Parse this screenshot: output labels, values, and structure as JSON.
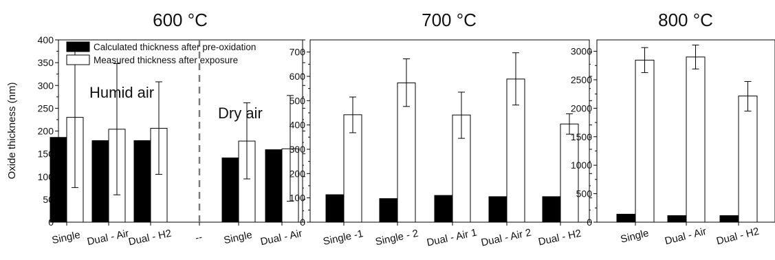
{
  "chart_data": [
    {
      "type": "bar",
      "title": "600 °C",
      "ylabel": "Oxide thickness (nm)",
      "ylim": [
        0,
        400
      ],
      "yticks": [
        0,
        50,
        100,
        150,
        200,
        250,
        300,
        350,
        400
      ],
      "categories": [
        "Single",
        "Dual - Air",
        "Dual - H2",
        "--",
        "Single",
        "Dual - Air"
      ],
      "series": [
        {
          "name": "Calculated thickness after pre-oxidation",
          "color": "#000000",
          "values": [
            186,
            179,
            179,
            null,
            141,
            159
          ]
        },
        {
          "name": "Measured thickness after exposure",
          "color": "#ffffff",
          "values": [
            230,
            204,
            206,
            null,
            178,
            161
          ],
          "error_low": [
            76,
            60,
            105,
            null,
            95,
            46
          ],
          "error_high": [
            384,
            348,
            308,
            null,
            262,
            278
          ]
        }
      ],
      "annotations": [
        "Humid air",
        "Dry air"
      ],
      "divider": "dashed",
      "legend": "top-left"
    },
    {
      "type": "bar",
      "title": "700 °C",
      "ylim": [
        0,
        750
      ],
      "yticks": [
        0,
        100,
        200,
        300,
        400,
        500,
        600,
        700
      ],
      "categories": [
        "Single -1",
        "Single - 2",
        "Dual - Air 1",
        "Dual - Air 2",
        "Dual - H2"
      ],
      "series": [
        {
          "name": "Calculated thickness after pre-oxidation",
          "color": "#000000",
          "values": [
            113,
            97,
            110,
            105,
            105
          ]
        },
        {
          "name": "Measured thickness after exposure",
          "color": "#ffffff",
          "values": [
            442,
            573,
            441,
            589,
            404
          ],
          "error_low": [
            368,
            476,
            345,
            482,
            362
          ],
          "error_high": [
            515,
            672,
            535,
            697,
            446
          ]
        }
      ]
    },
    {
      "type": "bar",
      "title": "800 °C",
      "ylim": [
        0,
        3200
      ],
      "yticks": [
        0,
        500,
        1000,
        1500,
        2000,
        2500,
        3000
      ],
      "categories": [
        "Single",
        "Dual - Air",
        "Dual - H2"
      ],
      "series": [
        {
          "name": "Calculated thickness after pre-oxidation",
          "color": "#000000",
          "values": [
            140,
            115,
            115
          ]
        },
        {
          "name": "Measured thickness after exposure",
          "color": "#ffffff",
          "values": [
            2845,
            2900,
            2215
          ],
          "error_low": [
            2625,
            2690,
            1950
          ],
          "error_high": [
            3065,
            3110,
            2470
          ]
        }
      ]
    }
  ]
}
